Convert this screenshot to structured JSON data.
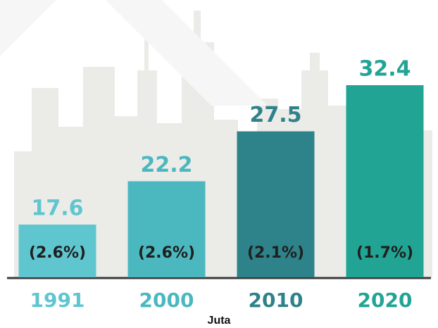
{
  "chart_data": {
    "type": "bar",
    "categories": [
      "1991",
      "2000",
      "2010",
      "2020"
    ],
    "values": [
      17.6,
      22.2,
      27.5,
      32.4
    ],
    "colors": [
      "#5fc6cf",
      "#4bb8bf",
      "#2e8289",
      "#22a494"
    ],
    "annotations": [
      "(2.6%)",
      "(2.6%)",
      "(2.1%)",
      "(1.7%)"
    ],
    "xlabel": "Juta",
    "ylim": [
      12,
      33
    ]
  }
}
